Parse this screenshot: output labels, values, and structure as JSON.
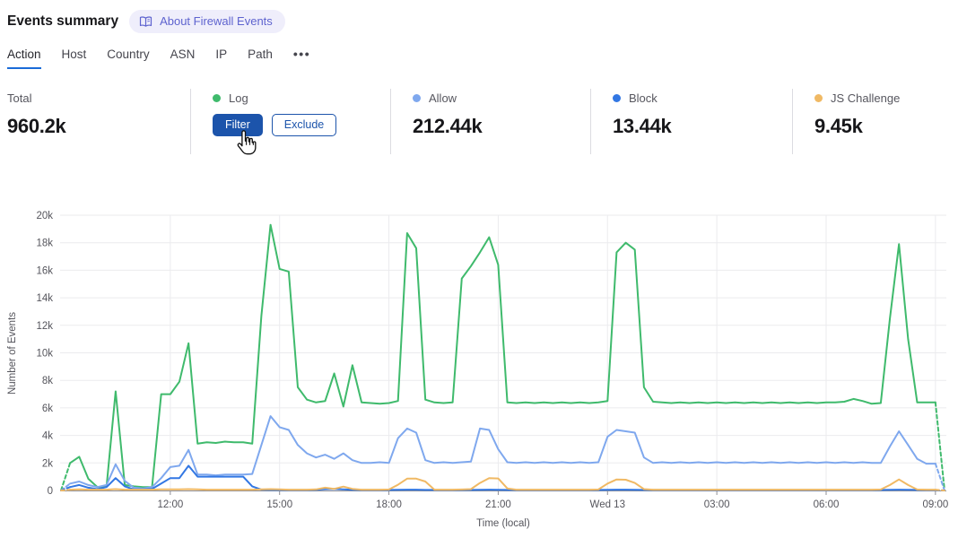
{
  "header": {
    "title": "Events summary",
    "badge_label": "About Firewall Events"
  },
  "tabs": [
    "Action",
    "Host",
    "Country",
    "ASN",
    "IP",
    "Path"
  ],
  "tabs_more": "•••",
  "stats": {
    "columns": [
      {
        "label": "Total",
        "value": "960.2k"
      },
      {
        "label": "Log",
        "dot_color": "#3fba6c",
        "filter_label": "Filter",
        "exclude_label": "Exclude"
      },
      {
        "label": "Allow",
        "value": "212.44k",
        "dot_color": "#7fa8ee"
      },
      {
        "label": "Block",
        "value": "13.44k",
        "dot_color": "#3277e3"
      },
      {
        "label": "JS Challenge",
        "value": "9.45k",
        "dot_color": "#f0b964"
      }
    ]
  },
  "chart_data": {
    "type": "line",
    "xlabel": "Time (local)",
    "ylabel": "Number of Events",
    "ylim": [
      0,
      20000
    ],
    "y_tick_step": 2000,
    "y_tick_labels": [
      "0",
      "2k",
      "4k",
      "6k",
      "8k",
      "10k",
      "12k",
      "14k",
      "16k",
      "18k",
      "20k"
    ],
    "grid": true,
    "x_unit": "hour_of_day_local",
    "x_start": 9.0,
    "x_step": 0.25,
    "x_ticks": [
      {
        "t": 12,
        "label": "12:00"
      },
      {
        "t": 15,
        "label": "15:00"
      },
      {
        "t": 18,
        "label": "18:00"
      },
      {
        "t": 21,
        "label": "21:00"
      },
      {
        "t": 24,
        "label": "Wed 13"
      },
      {
        "t": 27,
        "label": "03:00"
      },
      {
        "t": 30,
        "label": "06:00"
      },
      {
        "t": 33,
        "label": "09:00"
      }
    ],
    "edge_segments_dashed": true,
    "series": [
      {
        "name": "Log",
        "color": "#3fba6c",
        "values": [
          0,
          2000,
          2450,
          850,
          250,
          300,
          7200,
          400,
          300,
          250,
          250,
          7000,
          7000,
          7900,
          10700,
          3400,
          3500,
          3450,
          3550,
          3500,
          3500,
          3400,
          12700,
          19300,
          16100,
          15900,
          7500,
          6600,
          6400,
          6500,
          8500,
          6100,
          9100,
          6400,
          6350,
          6300,
          6350,
          6500,
          18700,
          17600,
          6600,
          6400,
          6350,
          6400,
          15400,
          16300,
          17300,
          18400,
          16400,
          6400,
          6350,
          6400,
          6350,
          6400,
          6350,
          6400,
          6350,
          6400,
          6350,
          6400,
          6500,
          17300,
          18000,
          17500,
          7500,
          6450,
          6400,
          6350,
          6400,
          6350,
          6400,
          6350,
          6400,
          6350,
          6400,
          6350,
          6400,
          6350,
          6400,
          6350,
          6400,
          6350,
          6400,
          6350,
          6400,
          6400,
          6450,
          6650,
          6500,
          6300,
          6350,
          12500,
          17900,
          11000,
          6400,
          6400,
          6400,
          0
        ]
      },
      {
        "name": "Allow",
        "color": "#7fa8ee",
        "values": [
          0,
          500,
          650,
          400,
          250,
          400,
          1900,
          700,
          200,
          150,
          250,
          900,
          1700,
          1800,
          2950,
          1150,
          1150,
          1100,
          1150,
          1150,
          1150,
          1200,
          3300,
          5400,
          4600,
          4400,
          3300,
          2700,
          2400,
          2600,
          2300,
          2700,
          2200,
          2000,
          2000,
          2050,
          2000,
          3800,
          4500,
          4200,
          2200,
          2000,
          2050,
          2000,
          2050,
          2100,
          4500,
          4400,
          3000,
          2050,
          2000,
          2050,
          2000,
          2050,
          2000,
          2050,
          2000,
          2050,
          2000,
          2050,
          3900,
          4400,
          4300,
          4200,
          2400,
          2000,
          2050,
          2000,
          2050,
          2000,
          2050,
          2000,
          2050,
          2000,
          2050,
          2000,
          2050,
          2000,
          2050,
          2000,
          2050,
          2000,
          2050,
          2000,
          2050,
          2000,
          2050,
          2000,
          2050,
          2000,
          2000,
          3200,
          4300,
          3300,
          2300,
          1950,
          1950,
          0
        ]
      },
      {
        "name": "Block",
        "color": "#3277e3",
        "values": [
          0,
          250,
          400,
          200,
          100,
          250,
          900,
          300,
          80,
          80,
          120,
          500,
          900,
          900,
          1800,
          1000,
          1000,
          1000,
          1000,
          1000,
          1000,
          300,
          60,
          40,
          40,
          40,
          40,
          40,
          50,
          100,
          120,
          80,
          50,
          40,
          40,
          40,
          40,
          50,
          60,
          60,
          40,
          40,
          40,
          40,
          40,
          40,
          50,
          60,
          50,
          40,
          40,
          40,
          40,
          40,
          40,
          40,
          40,
          40,
          40,
          40,
          50,
          60,
          60,
          50,
          40,
          40,
          40,
          40,
          40,
          40,
          40,
          40,
          40,
          40,
          40,
          40,
          40,
          40,
          40,
          40,
          40,
          40,
          40,
          40,
          40,
          40,
          40,
          40,
          40,
          40,
          40,
          50,
          60,
          50,
          40,
          40,
          40,
          0
        ]
      },
      {
        "name": "JS Challenge",
        "color": "#f0b964",
        "values": [
          0,
          60,
          80,
          60,
          60,
          60,
          100,
          60,
          60,
          60,
          60,
          80,
          80,
          80,
          100,
          80,
          60,
          60,
          60,
          60,
          60,
          60,
          80,
          100,
          80,
          60,
          60,
          60,
          80,
          200,
          120,
          280,
          120,
          60,
          60,
          60,
          70,
          420,
          860,
          860,
          650,
          60,
          60,
          60,
          70,
          100,
          550,
          900,
          870,
          150,
          60,
          60,
          60,
          60,
          60,
          60,
          60,
          60,
          60,
          70,
          500,
          800,
          780,
          550,
          100,
          60,
          60,
          60,
          60,
          60,
          60,
          60,
          60,
          60,
          60,
          60,
          60,
          60,
          60,
          60,
          60,
          60,
          60,
          60,
          60,
          60,
          60,
          60,
          60,
          60,
          70,
          400,
          800,
          400,
          70,
          60,
          60,
          0
        ]
      }
    ]
  },
  "cursor": {
    "type": "hand-pointer"
  },
  "colors": {
    "accent_blue": "#1c54ab",
    "tab_underline": "#1a6bd8",
    "badge_bg": "#efeefb",
    "badge_text": "#5e63cf",
    "grid": "#ebebee",
    "axis": "#8f8f96",
    "tick_text": "#55555c",
    "divider": "#dcdce1"
  }
}
